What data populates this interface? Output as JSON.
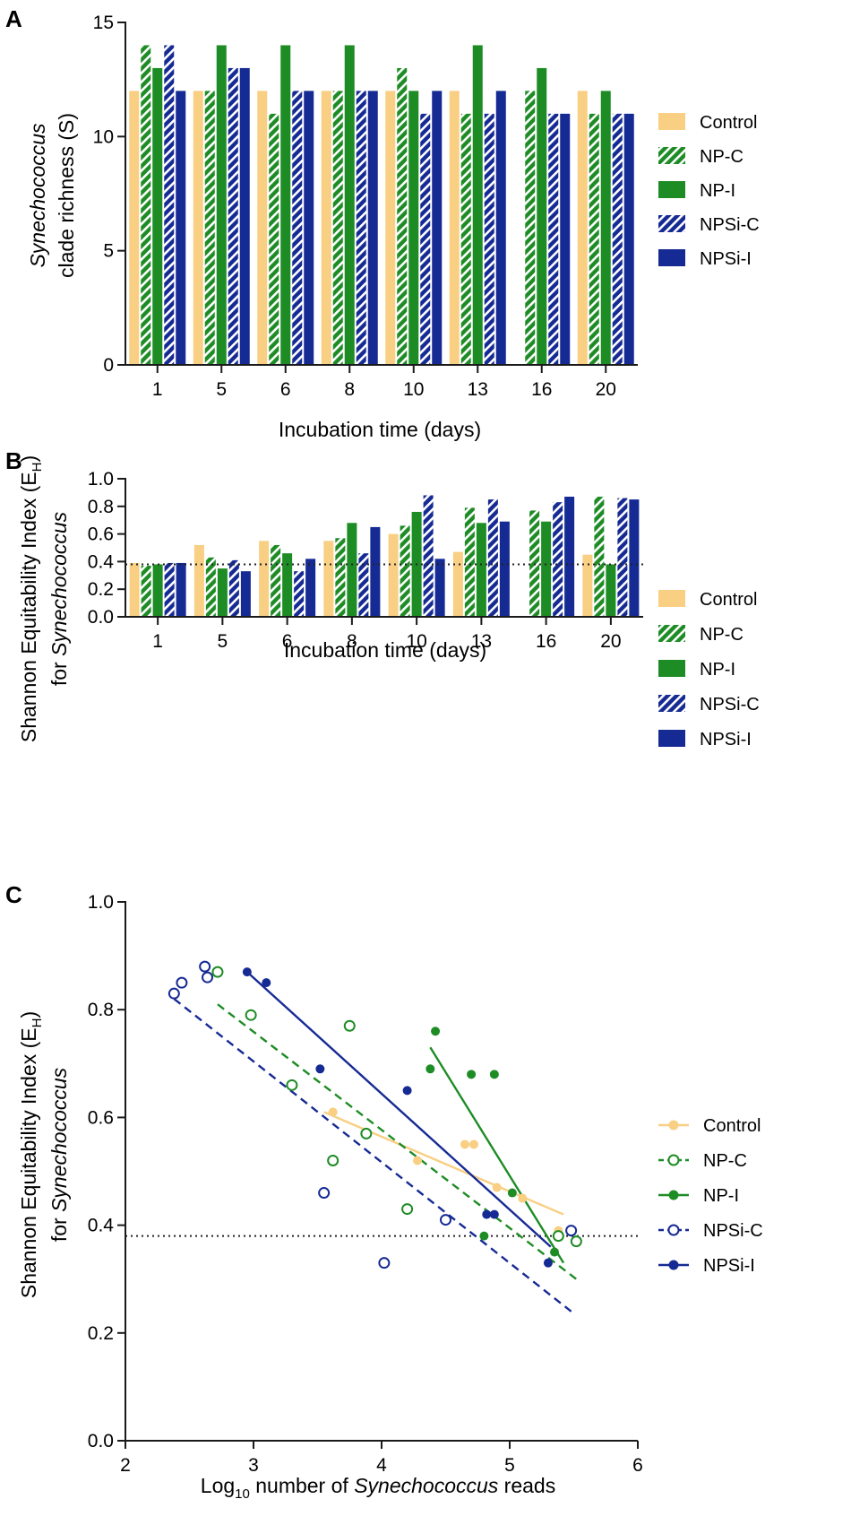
{
  "colors": {
    "control": "#f8cf83",
    "np": "#1e8c25",
    "npsi": "#162a94",
    "axis": "#1a1a1a"
  },
  "chart_data": [
    {
      "type": "bar",
      "panel": "A",
      "title": "",
      "xlabel": "Incubation time (days)",
      "ylabel_italic": "Synechococcus",
      "ylabel_rest": "clade richness (S)",
      "ylim": [
        0,
        15
      ],
      "yticks": [
        "0",
        "5",
        "10",
        "15"
      ],
      "categories": [
        "1",
        "5",
        "6",
        "8",
        "10",
        "13",
        "16",
        "20"
      ],
      "series": [
        {
          "name": "Control",
          "style": "control",
          "values": [
            12,
            12,
            12,
            12,
            12,
            12,
            null,
            12
          ]
        },
        {
          "name": "NP-C",
          "style": "np-hatch",
          "values": [
            14,
            12,
            11,
            12,
            13,
            11,
            12,
            11
          ]
        },
        {
          "name": "NP-I",
          "style": "np-solid",
          "values": [
            13,
            14,
            14,
            14,
            12,
            14,
            13,
            12
          ]
        },
        {
          "name": "NPSi-C",
          "style": "npsi-hatch",
          "values": [
            14,
            13,
            12,
            12,
            11,
            11,
            11,
            11
          ]
        },
        {
          "name": "NPSi-I",
          "style": "npsi-solid",
          "values": [
            12,
            13,
            12,
            12,
            12,
            12,
            11,
            11
          ]
        }
      ]
    },
    {
      "type": "bar",
      "panel": "B",
      "title": "",
      "xlabel": "Incubation time (days)",
      "ylabel_line1": "Shannon Equitability Index (E",
      "ylabel_sub": "H",
      "ylabel_close": ")",
      "ylabel_line2_prefix": "for ",
      "ylabel_line2_italic": "Synechococcus",
      "ylim": [
        0,
        1.0
      ],
      "yticks": [
        "0.0",
        "0.2",
        "0.4",
        "0.6",
        "0.8",
        "1.0"
      ],
      "reference_line": 0.38,
      "categories": [
        "1",
        "5",
        "6",
        "8",
        "10",
        "13",
        "16",
        "20"
      ],
      "series": [
        {
          "name": "Control",
          "style": "control",
          "values": [
            0.39,
            0.52,
            0.55,
            0.55,
            0.6,
            0.47,
            null,
            0.45
          ]
        },
        {
          "name": "NP-C",
          "style": "np-hatch",
          "values": [
            0.37,
            0.43,
            0.52,
            0.57,
            0.66,
            0.79,
            0.77,
            0.87
          ]
        },
        {
          "name": "NP-I",
          "style": "np-solid",
          "values": [
            0.38,
            0.35,
            0.46,
            0.68,
            0.76,
            0.68,
            0.69,
            0.38
          ]
        },
        {
          "name": "NPSi-C",
          "style": "npsi-hatch",
          "values": [
            0.39,
            0.41,
            0.33,
            0.46,
            0.88,
            0.85,
            0.83,
            0.86
          ]
        },
        {
          "name": "NPSi-I",
          "style": "npsi-solid",
          "values": [
            0.39,
            0.33,
            0.42,
            0.65,
            0.42,
            0.69,
            0.87,
            0.85
          ]
        }
      ]
    },
    {
      "type": "scatter",
      "panel": "C",
      "title": "",
      "xlabel_prefix": "Log",
      "xlabel_sub": "10",
      "xlabel_mid": " number of ",
      "xlabel_italic": "Synechococcus",
      "xlabel_suffix": " reads",
      "ylabel_line1": "Shannon Equitability Index (E",
      "ylabel_sub": "H",
      "ylabel_close": ")",
      "ylabel_line2_prefix": "for ",
      "ylabel_line2_italic": "Synechococcus",
      "xlim": [
        2,
        6
      ],
      "ylim": [
        0,
        1.0
      ],
      "xticks": [
        "2",
        "3",
        "4",
        "5",
        "6"
      ],
      "yticks": [
        "0.0",
        "0.2",
        "0.4",
        "0.6",
        "0.8",
        "1.0"
      ],
      "reference_line": 0.38,
      "series": [
        {
          "name": "Control",
          "style": "control",
          "marker": "filled",
          "dashed": false,
          "points": [
            [
              3.62,
              0.61
            ],
            [
              4.28,
              0.52
            ],
            [
              4.65,
              0.55
            ],
            [
              4.72,
              0.55
            ],
            [
              4.9,
              0.47
            ],
            [
              5.1,
              0.45
            ],
            [
              5.38,
              0.39
            ]
          ],
          "fit": [
            [
              3.55,
              0.61
            ],
            [
              5.42,
              0.42
            ]
          ]
        },
        {
          "name": "NP-C",
          "style": "np",
          "marker": "open",
          "dashed": true,
          "points": [
            [
              2.72,
              0.87
            ],
            [
              2.98,
              0.79
            ],
            [
              3.3,
              0.66
            ],
            [
              3.62,
              0.52
            ],
            [
              3.75,
              0.77
            ],
            [
              3.88,
              0.57
            ],
            [
              4.2,
              0.43
            ],
            [
              5.38,
              0.38
            ],
            [
              5.52,
              0.37
            ]
          ],
          "fit": [
            [
              2.72,
              0.81
            ],
            [
              5.52,
              0.3
            ]
          ]
        },
        {
          "name": "NP-I",
          "style": "np",
          "marker": "filled",
          "dashed": false,
          "points": [
            [
              4.38,
              0.69
            ],
            [
              4.42,
              0.76
            ],
            [
              4.7,
              0.68
            ],
            [
              4.88,
              0.68
            ],
            [
              5.02,
              0.46
            ],
            [
              5.35,
              0.35
            ],
            [
              4.8,
              0.38
            ]
          ],
          "fit": [
            [
              4.38,
              0.73
            ],
            [
              5.42,
              0.33
            ]
          ]
        },
        {
          "name": "NPSi-C",
          "style": "npsi",
          "marker": "open",
          "dashed": true,
          "points": [
            [
              2.38,
              0.83
            ],
            [
              2.44,
              0.85
            ],
            [
              2.62,
              0.88
            ],
            [
              2.64,
              0.86
            ],
            [
              3.55,
              0.46
            ],
            [
              4.02,
              0.33
            ],
            [
              4.5,
              0.41
            ],
            [
              5.48,
              0.39
            ]
          ],
          "fit": [
            [
              2.38,
              0.82
            ],
            [
              5.48,
              0.24
            ]
          ]
        },
        {
          "name": "NPSi-I",
          "style": "npsi",
          "marker": "filled",
          "dashed": false,
          "points": [
            [
              2.95,
              0.87
            ],
            [
              3.1,
              0.85
            ],
            [
              3.52,
              0.69
            ],
            [
              4.2,
              0.65
            ],
            [
              4.82,
              0.42
            ],
            [
              4.88,
              0.42
            ],
            [
              5.3,
              0.33
            ]
          ],
          "fit": [
            [
              2.95,
              0.87
            ],
            [
              5.32,
              0.36
            ]
          ]
        }
      ]
    }
  ]
}
